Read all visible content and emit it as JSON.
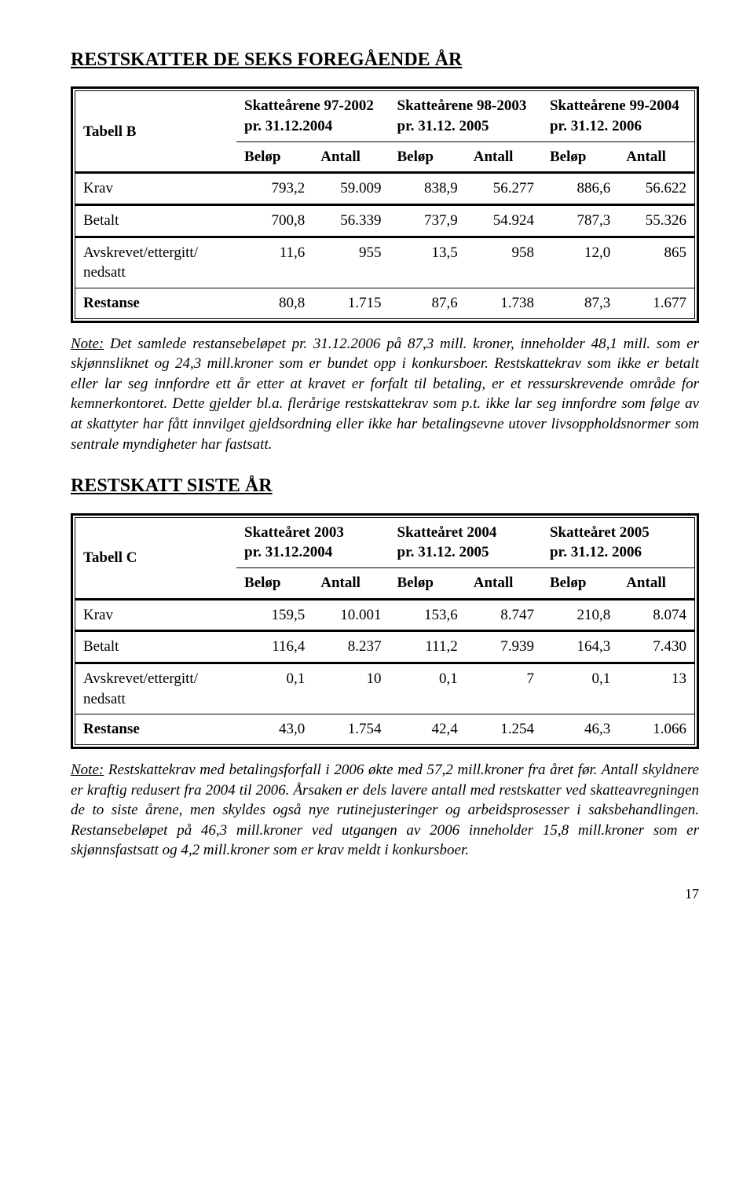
{
  "section1": {
    "title": "RESTSKATTER DE SEKS FOREGÅENDE ÅR",
    "table": {
      "corner": "Tabell B",
      "period_cols": [
        {
          "line1": "Skatteårene 97-2002",
          "line2": "pr. 31.12.2004"
        },
        {
          "line1": "Skatteårene 98-2003",
          "line2": "pr. 31.12. 2005"
        },
        {
          "line1": "Skatteårene 99-2004",
          "line2": "pr. 31.12. 2006"
        }
      ],
      "subheaders": [
        "Beløp",
        "Antall",
        "Beløp",
        "Antall",
        "Beløp",
        "Antall"
      ],
      "rows": [
        {
          "label": "Krav",
          "cells": [
            "793,2",
            "59.009",
            "838,9",
            "56.277",
            "886,6",
            "56.622"
          ]
        },
        {
          "label": "Betalt",
          "cells": [
            "700,8",
            "56.339",
            "737,9",
            "54.924",
            "787,3",
            "55.326"
          ]
        },
        {
          "label": "Avskrevet/ettergitt/\nnedsatt",
          "cells": [
            "11,6",
            "955",
            "13,5",
            "958",
            "12,0",
            "865"
          ]
        },
        {
          "label": "Restanse",
          "cells": [
            "80,8",
            "1.715",
            "87,6",
            "1.738",
            "87,3",
            "1.677"
          ]
        }
      ]
    },
    "note_label": "Note:",
    "note_body": " Det samlede restansebeløpet pr. 31.12.2006 på 87,3 mill. kroner, inneholder 48,1 mill. som er skjønnsliknet og 24,3 mill.kroner som er bundet opp i konkursboer. Restskattekrav som ikke er betalt eller lar seg innfordre ett år etter at kravet er forfalt til betaling, er et ressurskrevende område for kemnerkontoret. Dette gjelder bl.a. flerårige restskattekrav som p.t. ikke lar seg innfordre som følge av at skattyter har fått innvilget gjeldsordning eller ikke har betalingsevne utover livsoppholdsnormer som sentrale myndigheter har fastsatt."
  },
  "section2": {
    "title": "RESTSKATT SISTE ÅR",
    "table": {
      "corner": "Tabell C",
      "period_cols": [
        {
          "line1": "Skatteåret 2003",
          "line2": "pr. 31.12.2004"
        },
        {
          "line1": "Skatteåret 2004",
          "line2": "pr. 31.12. 2005"
        },
        {
          "line1": "Skatteåret 2005",
          "line2": "pr. 31.12. 2006"
        }
      ],
      "subheaders": [
        "Beløp",
        "Antall",
        "Beløp",
        "Antall",
        "Beløp",
        "Antall"
      ],
      "rows": [
        {
          "label": "Krav",
          "cells": [
            "159,5",
            "10.001",
            "153,6",
            "8.747",
            "210,8",
            "8.074"
          ]
        },
        {
          "label": "Betalt",
          "cells": [
            "116,4",
            "8.237",
            "111,2",
            "7.939",
            "164,3",
            "7.430"
          ]
        },
        {
          "label": "Avskrevet/ettergitt/\nnedsatt",
          "cells": [
            "0,1",
            "10",
            "0,1",
            "7",
            "0,1",
            "13"
          ]
        },
        {
          "label": "Restanse",
          "cells": [
            "43,0",
            "1.754",
            "42,4",
            "1.254",
            "46,3",
            "1.066"
          ]
        }
      ]
    },
    "note_label": "Note:",
    "note_body": " Restskattekrav med betalingsforfall i 2006 økte med 57,2 mill.kroner fra året før. Antall skyldnere er kraftig redusert fra 2004 til 2006. Årsaken er dels lavere antall med restskatter ved skatteavregningen de to siste årene, men skyldes også nye rutinejusteringer og arbeidsprosesser i saksbehandlingen. Restansebeløpet på 46,3 mill.kroner ved utgangen av 2006 inneholder 15,8 mill.kroner som er skjønnsfastsatt og 4,2 mill.kroner som er krav meldt i konkursboer."
  },
  "page_number": "17"
}
